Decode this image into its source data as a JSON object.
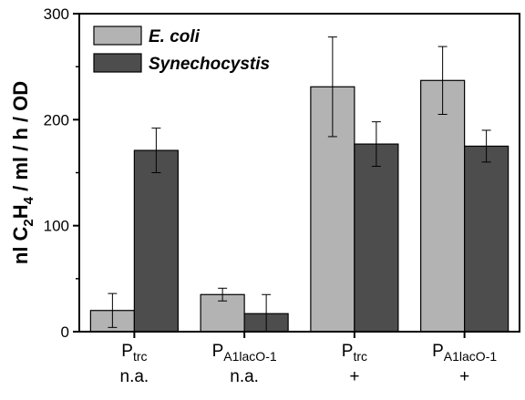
{
  "chart_data": {
    "type": "bar",
    "ylabel": {
      "parts": [
        {
          "text": "nl C",
          "sub": false
        },
        {
          "text": "2",
          "sub": true
        },
        {
          "text": "H",
          "sub": false
        },
        {
          "text": "4",
          "sub": true
        },
        {
          "text": " / ml / h / OD",
          "sub": false
        }
      ]
    },
    "ylim": [
      0,
      300
    ],
    "yticks": [
      0,
      100,
      200,
      300
    ],
    "categories": [
      {
        "main": "P",
        "sub": "trc",
        "condition": "n.a."
      },
      {
        "main": "P",
        "sub": "A1lacO-1",
        "condition": "n.a."
      },
      {
        "main": "P",
        "sub": "trc",
        "condition": "+"
      },
      {
        "main": "P",
        "sub": "A1lacO-1",
        "condition": "+"
      }
    ],
    "series": [
      {
        "name": "E. coli",
        "color": "#b3b3b3",
        "values": [
          20,
          35,
          231,
          237
        ],
        "errors": [
          16,
          6,
          47,
          32
        ]
      },
      {
        "name": "Synechocystis",
        "color": "#4d4d4d",
        "values": [
          171,
          17,
          177,
          175
        ],
        "errors": [
          21,
          18,
          21,
          15
        ]
      }
    ],
    "legend_position": "top-left",
    "grid": false
  }
}
